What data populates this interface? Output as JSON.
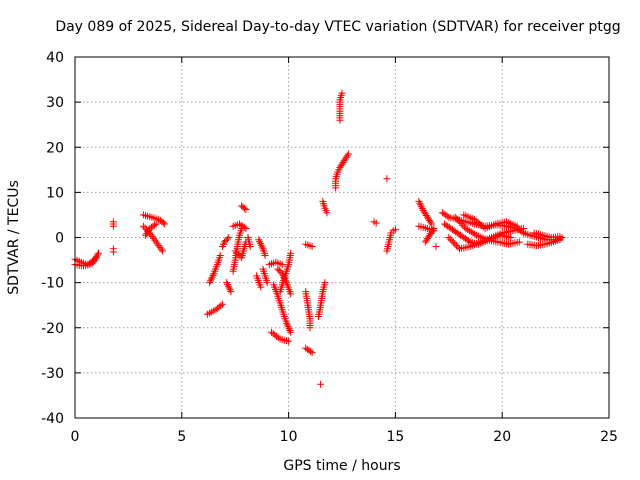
{
  "chart_data": {
    "type": "scatter",
    "title": "Day 089 of 2025, Sidereal Day-to-day VTEC variation (SDTVAR) for receiver ptgg",
    "xlabel": "GPS time / hours",
    "ylabel": "SDTVAR / TECUs",
    "xlim": [
      0,
      25
    ],
    "ylim": [
      -40,
      40
    ],
    "xticks": [
      0,
      5,
      10,
      15,
      20,
      25
    ],
    "yticks": [
      -40,
      -30,
      -20,
      -10,
      0,
      10,
      20,
      30,
      40
    ],
    "grid": true,
    "marker": "plus",
    "color": "#ff0000",
    "series": [
      {
        "name": "SDTVAR",
        "segments": [
          [
            [
              0.0,
              -4.8
            ],
            [
              0.3,
              -5.5
            ],
            [
              0.6,
              -6.0
            ],
            [
              0.9,
              -5.0
            ],
            [
              1.1,
              -3.5
            ]
          ],
          [
            [
              0.0,
              -6.0
            ],
            [
              0.4,
              -6.3
            ],
            [
              0.8,
              -5.8
            ],
            [
              1.0,
              -4.5
            ]
          ],
          [
            [
              1.8,
              2.5
            ],
            [
              1.8,
              3.5
            ]
          ],
          [
            [
              1.8,
              -2.5
            ],
            [
              1.8,
              -3.2
            ]
          ],
          [
            [
              3.2,
              5.0
            ],
            [
              3.6,
              4.5
            ],
            [
              4.0,
              3.8
            ],
            [
              4.2,
              3.0
            ]
          ],
          [
            [
              3.2,
              2.5
            ],
            [
              3.5,
              1.0
            ],
            [
              3.8,
              -1.0
            ],
            [
              4.1,
              -3.0
            ]
          ],
          [
            [
              3.3,
              0.5
            ],
            [
              3.5,
              2.0
            ],
            [
              3.8,
              3.0
            ]
          ],
          [
            [
              6.2,
              -17.0
            ],
            [
              6.6,
              -16.0
            ],
            [
              6.9,
              -14.8
            ]
          ],
          [
            [
              6.3,
              -10.0
            ],
            [
              6.5,
              -8.0
            ],
            [
              6.7,
              -5.5
            ],
            [
              6.8,
              -4.0
            ]
          ],
          [
            [
              6.9,
              -2.0
            ],
            [
              7.0,
              -1.0
            ],
            [
              7.2,
              0.0
            ]
          ],
          [
            [
              7.1,
              -10.0
            ],
            [
              7.3,
              -12.0
            ]
          ],
          [
            [
              7.4,
              -7.5
            ],
            [
              7.5,
              -5.0
            ],
            [
              7.6,
              -2.0
            ],
            [
              7.7,
              0.5
            ],
            [
              7.8,
              2.0
            ]
          ],
          [
            [
              7.5,
              -3.0
            ],
            [
              7.8,
              -4.5
            ],
            [
              8.0,
              -1.0
            ]
          ],
          [
            [
              7.4,
              2.5
            ],
            [
              7.7,
              3.0
            ],
            [
              8.0,
              2.0
            ]
          ],
          [
            [
              7.8,
              7.0
            ],
            [
              8.0,
              6.2
            ]
          ],
          [
            [
              8.1,
              0.0
            ],
            [
              8.2,
              -2.0
            ]
          ],
          [
            [
              8.5,
              -8.5
            ],
            [
              8.7,
              -11.0
            ]
          ],
          [
            [
              8.6,
              -0.5
            ],
            [
              8.8,
              -2.5
            ],
            [
              8.9,
              -4.0
            ]
          ],
          [
            [
              8.8,
              -7.0
            ],
            [
              9.0,
              -10.0
            ]
          ],
          [
            [
              9.1,
              -6.0
            ],
            [
              9.4,
              -5.5
            ],
            [
              9.7,
              -6.0
            ]
          ],
          [
            [
              9.2,
              -21.0
            ],
            [
              9.6,
              -22.5
            ],
            [
              10.0,
              -23.0
            ]
          ],
          [
            [
              9.3,
              -10.5
            ],
            [
              9.5,
              -13.0
            ],
            [
              9.7,
              -16.0
            ],
            [
              9.9,
              -19.0
            ],
            [
              10.1,
              -21.0
            ]
          ],
          [
            [
              9.6,
              -12.0
            ],
            [
              9.8,
              -9.0
            ],
            [
              10.0,
              -6.0
            ],
            [
              10.1,
              -3.5
            ]
          ],
          [
            [
              9.5,
              -7.0
            ],
            [
              9.7,
              -8.0
            ],
            [
              9.9,
              -10.0
            ],
            [
              10.1,
              -12.5
            ]
          ],
          [
            [
              10.8,
              -1.5
            ],
            [
              11.1,
              -2.0
            ]
          ],
          [
            [
              10.8,
              -12.0
            ],
            [
              10.9,
              -15.0
            ],
            [
              11.0,
              -18.0
            ],
            [
              11.0,
              -20.0
            ]
          ],
          [
            [
              10.8,
              -24.5
            ],
            [
              11.1,
              -25.5
            ]
          ],
          [
            [
              11.4,
              -17.5
            ],
            [
              11.5,
              -15.0
            ],
            [
              11.6,
              -12.0
            ],
            [
              11.7,
              -10.0
            ]
          ],
          [
            [
              11.5,
              -32.5
            ]
          ],
          [
            [
              11.6,
              8.0
            ],
            [
              11.7,
              6.5
            ],
            [
              11.8,
              5.5
            ]
          ],
          [
            [
              12.2,
              11.0
            ],
            [
              12.2,
              13.0
            ],
            [
              12.3,
              14.5
            ],
            [
              12.4,
              15.5
            ],
            [
              12.6,
              17.0
            ],
            [
              12.8,
              18.5
            ]
          ],
          [
            [
              12.4,
              26.0
            ],
            [
              12.4,
              28.5
            ],
            [
              12.4,
              30.5
            ],
            [
              12.5,
              32.0
            ]
          ],
          [
            [
              14.0,
              3.5
            ],
            [
              14.1,
              3.2
            ]
          ],
          [
            [
              14.6,
              13.0
            ]
          ],
          [
            [
              14.6,
              -3.0
            ],
            [
              14.7,
              -1.0
            ],
            [
              14.8,
              1.0
            ],
            [
              14.9,
              1.5
            ],
            [
              15.0,
              1.8
            ]
          ],
          [
            [
              16.1,
              8.0
            ],
            [
              16.3,
              6.0
            ],
            [
              16.5,
              4.5
            ],
            [
              16.7,
              3.0
            ]
          ],
          [
            [
              16.1,
              2.5
            ],
            [
              16.5,
              2.0
            ],
            [
              16.8,
              1.5
            ]
          ],
          [
            [
              16.4,
              -1.0
            ],
            [
              16.6,
              0.5
            ],
            [
              16.8,
              2.0
            ]
          ],
          [
            [
              16.9,
              -2.0
            ]
          ],
          [
            [
              17.2,
              5.5
            ],
            [
              17.5,
              4.5
            ],
            [
              17.9,
              4.0
            ],
            [
              18.3,
              3.5
            ],
            [
              18.7,
              3.0
            ],
            [
              19.2,
              2.5
            ],
            [
              19.7,
              2.8
            ],
            [
              20.2,
              2.5
            ],
            [
              20.7,
              2.0
            ],
            [
              21.0,
              1.0
            ]
          ],
          [
            [
              17.3,
              3.0
            ],
            [
              17.6,
              2.0
            ],
            [
              17.9,
              1.0
            ],
            [
              18.2,
              0.0
            ],
            [
              18.5,
              -1.0
            ],
            [
              18.9,
              -1.5
            ],
            [
              19.4,
              -0.5
            ],
            [
              19.9,
              0.5
            ],
            [
              20.4,
              0.0
            ]
          ],
          [
            [
              17.5,
              0.0
            ],
            [
              18.0,
              -2.5
            ],
            [
              18.5,
              -2.0
            ],
            [
              19.0,
              -1.0
            ],
            [
              19.5,
              0.0
            ],
            [
              20.0,
              1.0
            ],
            [
              20.5,
              1.5
            ],
            [
              21.0,
              2.0
            ]
          ],
          [
            [
              17.8,
              4.5
            ],
            [
              18.3,
              2.0
            ],
            [
              18.8,
              0.5
            ],
            [
              19.3,
              -0.5
            ],
            [
              19.8,
              -1.0
            ],
            [
              20.3,
              -1.5
            ],
            [
              20.8,
              -1.0
            ]
          ],
          [
            [
              18.2,
              5.0
            ],
            [
              18.7,
              4.0
            ],
            [
              19.2,
              2.0
            ],
            [
              19.7,
              3.0
            ],
            [
              20.2,
              3.5
            ],
            [
              20.7,
              2.5
            ]
          ],
          [
            [
              21.0,
              1.0
            ],
            [
              21.3,
              0.5
            ],
            [
              21.7,
              0.0
            ],
            [
              22.1,
              -0.5
            ],
            [
              22.5,
              -0.5
            ],
            [
              22.8,
              0.0
            ]
          ],
          [
            [
              21.2,
              -1.5
            ],
            [
              21.6,
              -1.8
            ],
            [
              22.0,
              -1.5
            ],
            [
              22.4,
              -1.0
            ],
            [
              22.7,
              -0.5
            ]
          ],
          [
            [
              21.5,
              1.0
            ],
            [
              21.9,
              0.5
            ],
            [
              22.3,
              0.0
            ],
            [
              22.7,
              0.2
            ]
          ]
        ]
      }
    ]
  }
}
